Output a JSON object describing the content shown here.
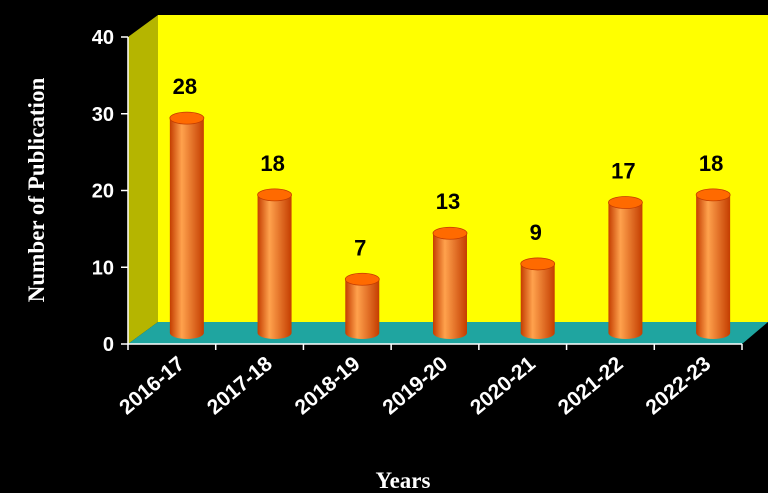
{
  "chart_data": {
    "type": "bar",
    "title": "",
    "xlabel": "Years",
    "ylabel": "Number of Publication",
    "categories": [
      "2016-17",
      "2017-18",
      "2018-19",
      "2019-20",
      "2020-21",
      "2021-22",
      "2022-23"
    ],
    "values": [
      28,
      18,
      7,
      13,
      9,
      17,
      18
    ],
    "ylim": [
      0,
      40
    ],
    "yticks": [
      0,
      10,
      20,
      30,
      40
    ],
    "yticks_labels": [
      "0",
      "10",
      "20",
      "30",
      "40"
    ],
    "data_labels": [
      "28",
      "18",
      "7",
      "13",
      "9",
      "17",
      "18"
    ],
    "grid": false,
    "legend": "none",
    "style": "3d-cylinder"
  },
  "colors": {
    "background": "#000000",
    "back_wall": "#ffff00",
    "side_wall": "#b5b500",
    "floor": "#1fa5a0",
    "bar": "#ff6a00",
    "bar_dark": "#c43d00",
    "bar_light": "#ffa24d",
    "text": "#ffffff",
    "label": "#000000"
  }
}
